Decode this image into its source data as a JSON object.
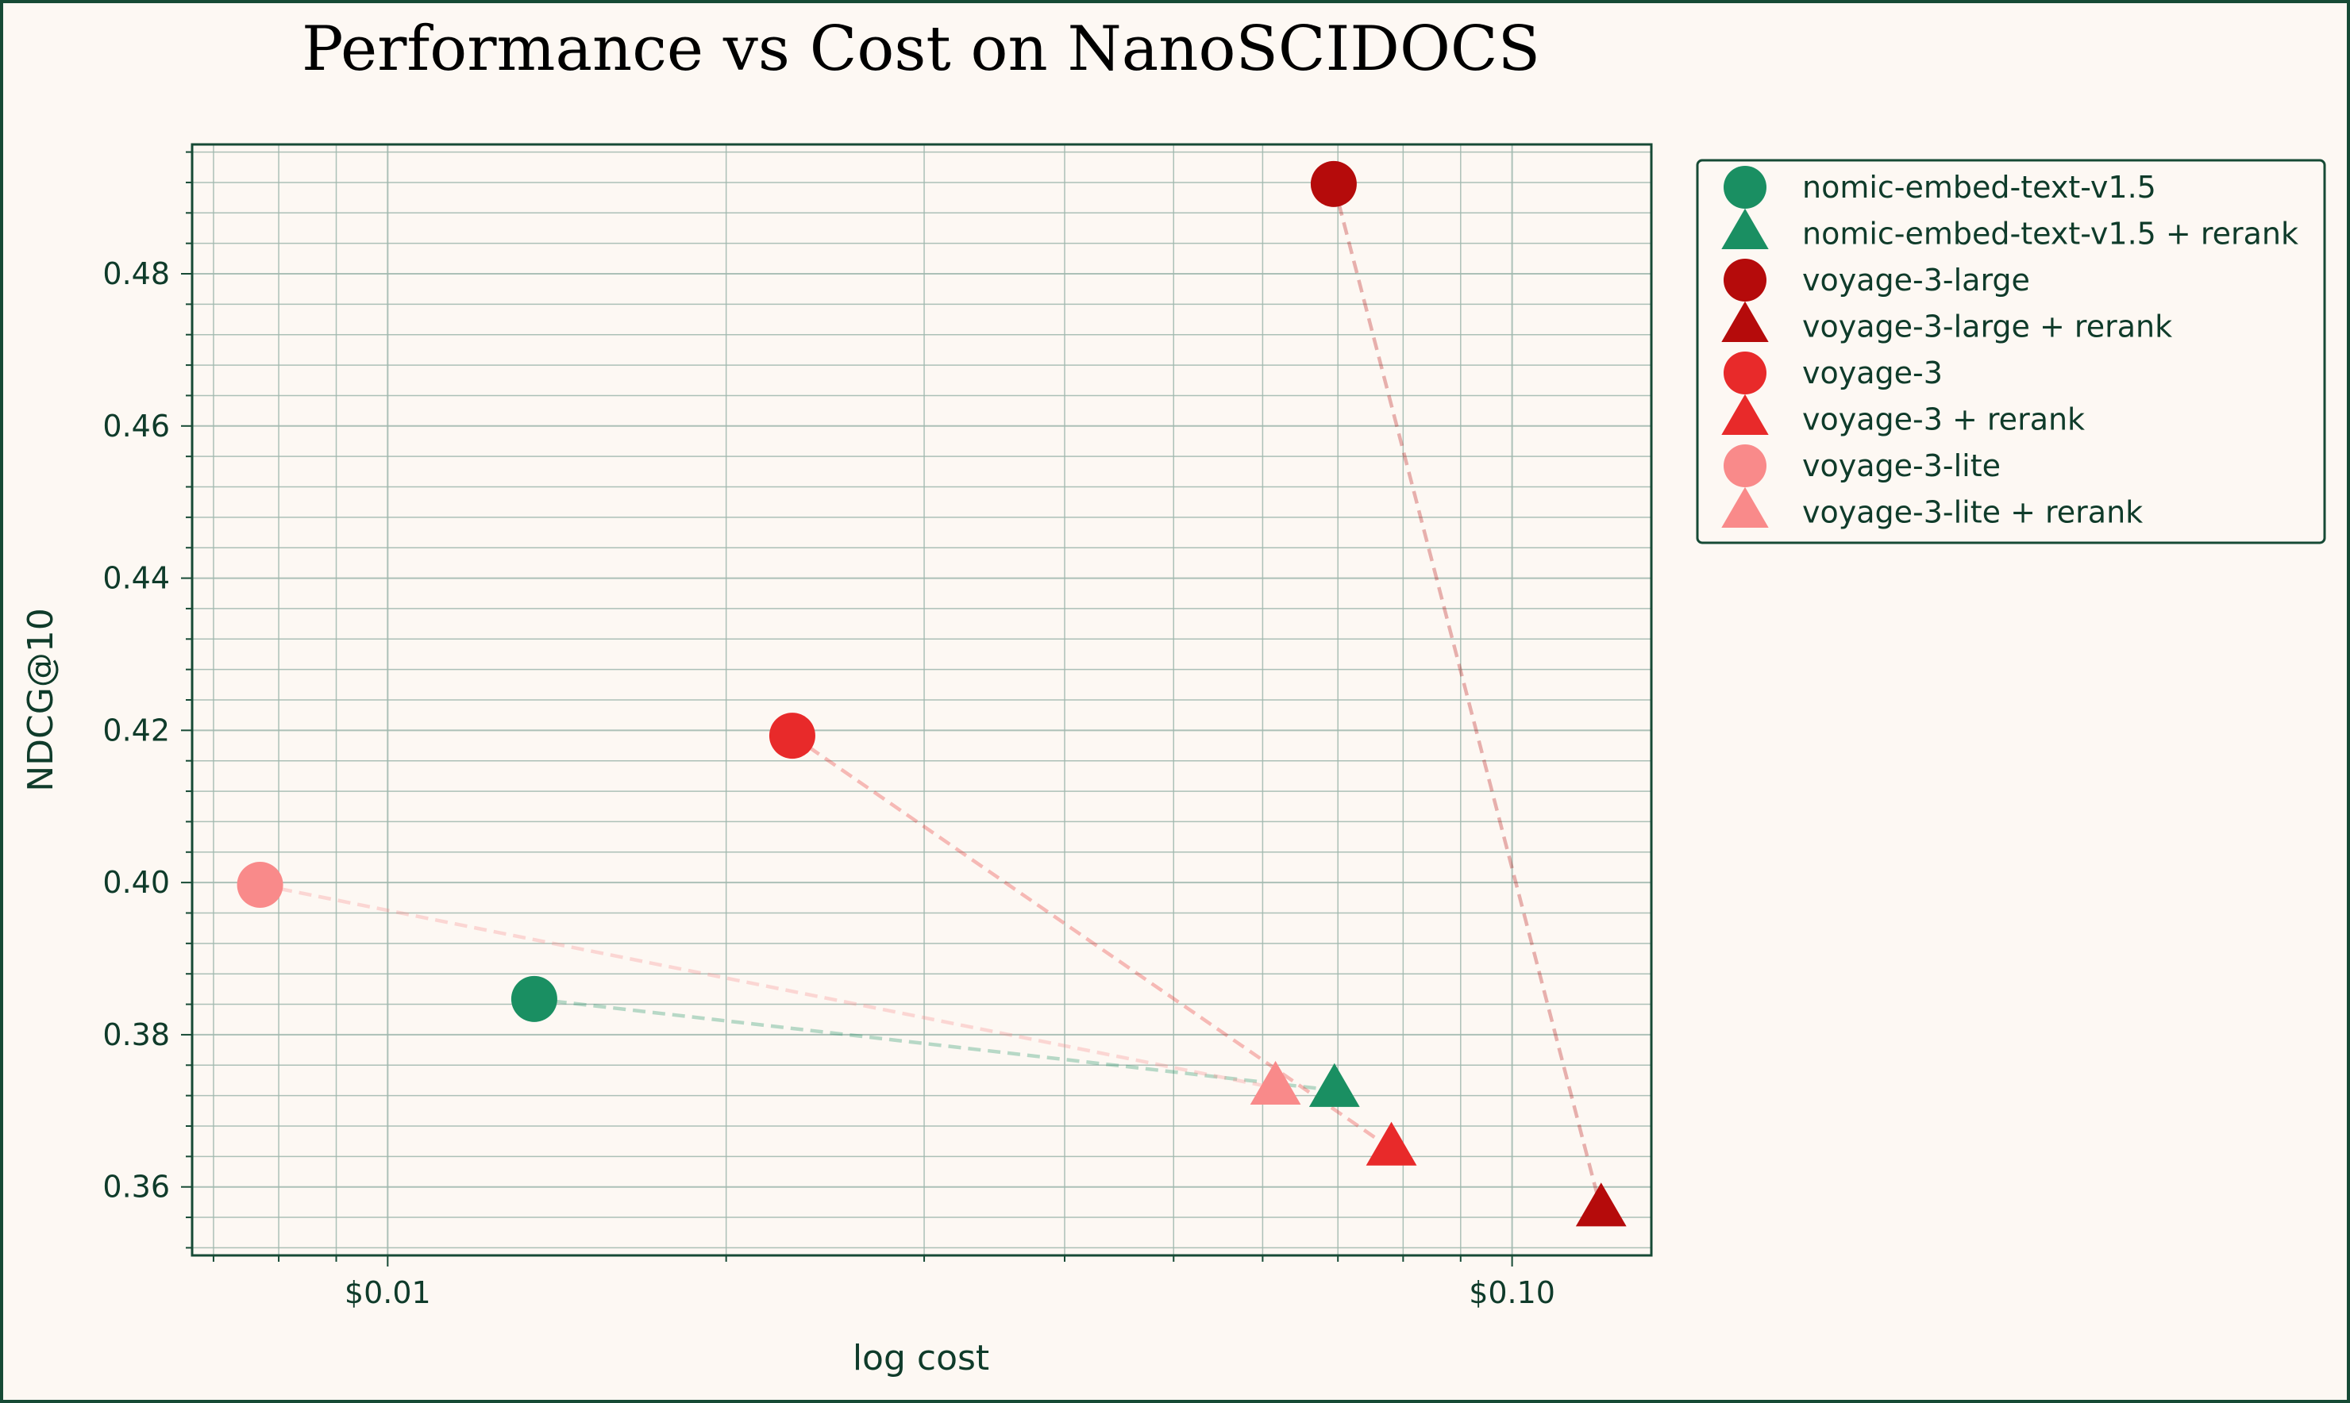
{
  "chart_data": {
    "type": "scatter",
    "title": "Performance vs Cost on NanoSCIDOCS",
    "xlabel": "log cost",
    "ylabel": "NDCG@10",
    "xscale": "log",
    "xlim": [
      0.0067,
      0.133
    ],
    "ylim": [
      0.351,
      0.497
    ],
    "xticks": [
      {
        "value": 0.01,
        "label": "$0.01"
      },
      {
        "value": 0.1,
        "label": "$0.10"
      }
    ],
    "yticks": [
      {
        "value": 0.36,
        "label": "0.36"
      },
      {
        "value": 0.38,
        "label": "0.38"
      },
      {
        "value": 0.4,
        "label": "0.40"
      },
      {
        "value": 0.42,
        "label": "0.42"
      },
      {
        "value": 0.44,
        "label": "0.44"
      },
      {
        "value": 0.46,
        "label": "0.46"
      },
      {
        "value": 0.48,
        "label": "0.48"
      }
    ],
    "grid": true,
    "legend_position": "outside-right",
    "series": [
      {
        "name": "nomic-embed-text-v1.5",
        "color": "#1a8f62",
        "marker": "circle",
        "x": [
          0.0135
        ],
        "y": [
          0.3847
        ]
      },
      {
        "name": "nomic-embed-text-v1.5 + rerank",
        "color": "#1a8f62",
        "marker": "triangle",
        "x": [
          0.0695
        ],
        "y": [
          0.3727
        ]
      },
      {
        "name": "voyage-3-large",
        "color": "#b50b0b",
        "marker": "circle",
        "x": [
          0.0694
        ],
        "y": [
          0.4918
        ]
      },
      {
        "name": "voyage-3-large + rerank",
        "color": "#b50b0b",
        "marker": "triangle",
        "x": [
          0.12
        ],
        "y": [
          0.357
        ]
      },
      {
        "name": "voyage-3",
        "color": "#e82a2a",
        "marker": "circle",
        "x": [
          0.0229
        ],
        "y": [
          0.4193
        ]
      },
      {
        "name": "voyage-3 + rerank",
        "color": "#e82a2a",
        "marker": "triangle",
        "x": [
          0.0781
        ],
        "y": [
          0.365
        ]
      },
      {
        "name": "voyage-3-lite",
        "color": "#f98a8a",
        "marker": "circle",
        "x": [
          0.0077
        ],
        "y": [
          0.3997
        ]
      },
      {
        "name": "voyage-3-lite + rerank",
        "color": "#f98a8a",
        "marker": "triangle",
        "x": [
          0.0616
        ],
        "y": [
          0.373
        ]
      }
    ],
    "connectors": [
      {
        "from": "nomic-embed-text-v1.5",
        "to": "nomic-embed-text-v1.5 + rerank",
        "color": "#1a8f62"
      },
      {
        "from": "voyage-3-large",
        "to": "voyage-3-large + rerank",
        "color": "#b50b0b"
      },
      {
        "from": "voyage-3",
        "to": "voyage-3 + rerank",
        "color": "#e82a2a"
      },
      {
        "from": "voyage-3-lite",
        "to": "voyage-3-lite + rerank",
        "color": "#f98a8a"
      }
    ]
  },
  "colors": {
    "background": "#fdf8f3",
    "axis": "#164a35",
    "grid": "#9fb7ad",
    "text": "#0f3b2a",
    "title": "#000000"
  }
}
